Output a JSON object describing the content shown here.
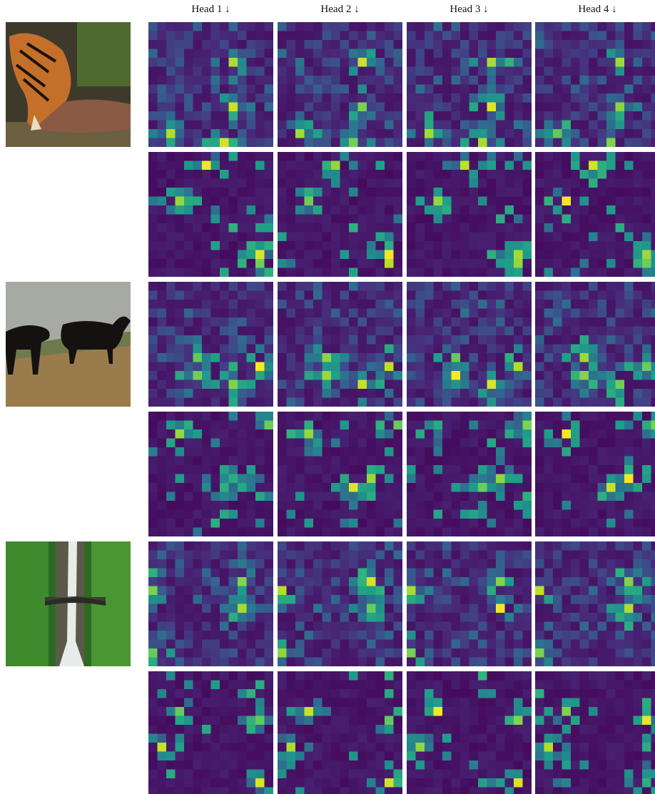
{
  "header": {
    "columns": [
      "Head 1 ↓",
      "Head 2 ↓",
      "Head 3 ↓",
      "Head 4 ↓"
    ]
  }
}
